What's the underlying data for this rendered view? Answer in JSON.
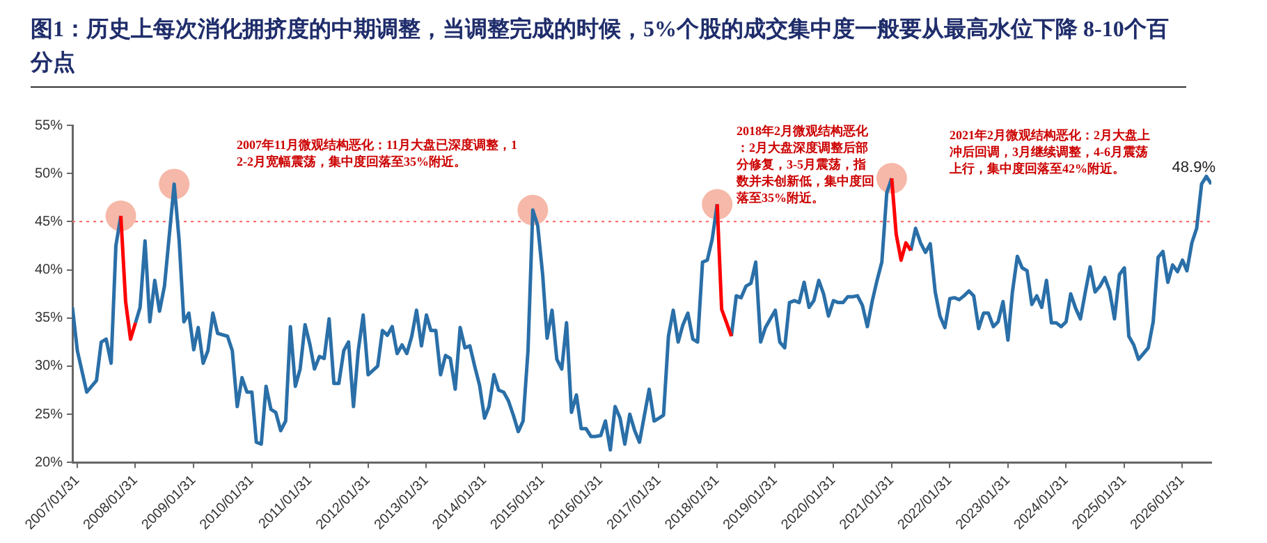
{
  "chart_data": {
    "type": "line",
    "title": "图1：历史上每次消化拥挤度的中期调整，当调整完成的时候，5%个股的成交集中度一般要从最高水位下降 8-10个百分点",
    "xlim": [
      "2007-01",
      "2026-08"
    ],
    "xticks": [
      {
        "value": "2007-01-31",
        "label": "2007/01/31"
      },
      {
        "value": "2008-01-31",
        "label": "2008/01/31"
      },
      {
        "value": "2009-01-31",
        "label": "2009/01/31"
      },
      {
        "value": "2010-01-31",
        "label": "2010/01/31"
      },
      {
        "value": "2011-01-31",
        "label": "2011/01/31"
      },
      {
        "value": "2012-01-31",
        "label": "2012/01/31"
      },
      {
        "value": "2013-01-31",
        "label": "2013/01/31"
      },
      {
        "value": "2014-01-31",
        "label": "2014/01/31"
      },
      {
        "value": "2015-01-31",
        "label": "2015/01/31"
      },
      {
        "value": "2016-01-31",
        "label": "2016/01/31"
      },
      {
        "value": "2017-01-31",
        "label": "2017/01/31"
      },
      {
        "value": "2018-01-31",
        "label": "2018/01/31"
      },
      {
        "value": "2019-01-31",
        "label": "2019/01/31"
      },
      {
        "value": "2020-01-31",
        "label": "2020/01/31"
      },
      {
        "value": "2021-01-31",
        "label": "2021/01/31"
      },
      {
        "value": "2022-01-31",
        "label": "2022/01/31"
      },
      {
        "value": "2023-01-31",
        "label": "2023/01/31"
      },
      {
        "value": "2024-01-31",
        "label": "2024/01/31"
      },
      {
        "value": "2025-01-31",
        "label": "2025/01/31"
      },
      {
        "value": "2026-01-31",
        "label": "2026/01/31"
      }
    ],
    "ylim": [
      20,
      55
    ],
    "yticks": [
      {
        "value": 20,
        "label": "20%"
      },
      {
        "value": 25,
        "label": "25%"
      },
      {
        "value": 30,
        "label": "30%"
      },
      {
        "value": 35,
        "label": "35%"
      },
      {
        "value": 40,
        "label": "40%"
      },
      {
        "value": 45,
        "label": "45%"
      },
      {
        "value": 50,
        "label": "50%"
      },
      {
        "value": 55,
        "label": "55%"
      }
    ],
    "grid": false,
    "legend": false,
    "marker": "none",
    "series": [
      {
        "type": "scatter",
        "marker": "circle",
        "color": "#f6b8a8",
        "x": [
          "2007-11",
          "2008-10",
          "2014-12",
          "2018-02",
          "2021-02"
        ],
        "values": [
          45.6,
          48.9,
          46.2,
          46.8,
          49.5
        ]
      },
      {
        "color": "#2a6fa8",
        "x": [
          "2007-01",
          "2007-02",
          "2007-04",
          "2007-06",
          "2007-07",
          "2007-08",
          "2007-09",
          "2007-10",
          "2007-11",
          "2007-12",
          "2008-01",
          "2008-02",
          "2008-03",
          "2008-04",
          "2008-05",
          "2008-06",
          "2008-07",
          "2008-08",
          "2008-10",
          "2008-11",
          "2008-12",
          "2009-01",
          "2009-02",
          "2009-03",
          "2009-04",
          "2009-05",
          "2009-06",
          "2009-07",
          "2009-09",
          "2009-10",
          "2009-11",
          "2009-12",
          "2010-01",
          "2010-02",
          "2010-03",
          "2010-04",
          "2010-05",
          "2010-06",
          "2010-07",
          "2010-08",
          "2010-09",
          "2010-10",
          "2010-11",
          "2010-12",
          "2011-01",
          "2011-02",
          "2011-03",
          "2011-04",
          "2011-05",
          "2011-06",
          "2011-07",
          "2011-08",
          "2011-09",
          "2011-10",
          "2011-11",
          "2011-12",
          "2012-01",
          "2012-02",
          "2012-04",
          "2012-05",
          "2012-06",
          "2012-07",
          "2012-08",
          "2012-09",
          "2012-10",
          "2012-11",
          "2012-12",
          "2013-01",
          "2013-02",
          "2013-03",
          "2013-04",
          "2013-05",
          "2013-06",
          "2013-07",
          "2013-08",
          "2013-09",
          "2013-10",
          "2013-11",
          "2013-12",
          "2014-01",
          "2014-02",
          "2014-03",
          "2014-04",
          "2014-05",
          "2014-06",
          "2014-07",
          "2014-08",
          "2014-09",
          "2014-10",
          "2014-11",
          "2014-12",
          "2015-01",
          "2015-02",
          "2015-03",
          "2015-04",
          "2015-05",
          "2015-06",
          "2015-07",
          "2015-08",
          "2015-09",
          "2015-10",
          "2015-11",
          "2015-12",
          "2016-01",
          "2016-02",
          "2016-03",
          "2016-04",
          "2016-05",
          "2016-06",
          "2016-07",
          "2016-08",
          "2016-09",
          "2016-10",
          "2016-11",
          "2016-12",
          "2017-01",
          "2017-02",
          "2017-03",
          "2017-04",
          "2017-05",
          "2017-06",
          "2017-07",
          "2017-08",
          "2017-09",
          "2017-10",
          "2017-11",
          "2017-12",
          "2018-01",
          "2018-02",
          "2018-03",
          "2018-04",
          "2018-05",
          "2018-06",
          "2018-07",
          "2018-08",
          "2018-09",
          "2018-10",
          "2018-11",
          "2018-12",
          "2019-01",
          "2019-02",
          "2019-03",
          "2019-04",
          "2019-05",
          "2019-06",
          "2019-07",
          "2019-08",
          "2019-09",
          "2019-10",
          "2019-11",
          "2019-12",
          "2020-01",
          "2020-02",
          "2020-03",
          "2020-04",
          "2020-05",
          "2020-06",
          "2020-07",
          "2020-08",
          "2020-09",
          "2020-10",
          "2020-11",
          "2020-12",
          "2021-01",
          "2021-02",
          "2021-03",
          "2021-04",
          "2021-05",
          "2021-06",
          "2021-07",
          "2021-08",
          "2021-09",
          "2021-10",
          "2021-11",
          "2021-12",
          "2022-01",
          "2022-02",
          "2022-03",
          "2022-04",
          "2022-05",
          "2022-06",
          "2022-07",
          "2022-08",
          "2022-09",
          "2022-10",
          "2022-11",
          "2022-12",
          "2023-01",
          "2023-02",
          "2023-03",
          "2023-04",
          "2023-05",
          "2023-06",
          "2023-07",
          "2023-08",
          "2023-09",
          "2023-10",
          "2023-11",
          "2023-12",
          "2024-01",
          "2024-02",
          "2024-03",
          "2024-04",
          "2024-05",
          "2024-06",
          "2024-07",
          "2024-08",
          "2024-09",
          "2024-10",
          "2024-11",
          "2024-12",
          "2025-01",
          "2025-02",
          "2025-03",
          "2025-04",
          "2025-05",
          "2025-06",
          "2025-07",
          "2025-08",
          "2025-09",
          "2025-10",
          "2025-11",
          "2025-12",
          "2026-01",
          "2026-02",
          "2026-03",
          "2026-04",
          "2026-05",
          "2026-06",
          "2026-07",
          "2026-08"
        ],
        "values": [
          36.1,
          31.6,
          27.3,
          28.5,
          32.5,
          32.8,
          30.3,
          42.5,
          45.6,
          null,
          null,
          34.5,
          36.1,
          43.0,
          34.6,
          38.9,
          35.7,
          38.3,
          48.9,
          43.1,
          34.6,
          35.5,
          31.7,
          34.0,
          30.3,
          31.6,
          35.5,
          33.4,
          33.1,
          31.6,
          25.8,
          28.8,
          27.3,
          27.3,
          22.1,
          21.9,
          27.9,
          25.5,
          25.2,
          23.3,
          24.3,
          34.1,
          27.9,
          29.7,
          34.3,
          32.2,
          29.7,
          31.0,
          30.8,
          34.9,
          28.2,
          28.2,
          31.6,
          32.5,
          25.8,
          31.6,
          35.3,
          29.1,
          30.0,
          33.7,
          33.2,
          34.1,
          31.3,
          32.2,
          31.3,
          33.1,
          35.8,
          32.1,
          35.3,
          33.7,
          33.7,
          29.1,
          31.1,
          30.8,
          27.6,
          34.0,
          31.9,
          32.1,
          30.0,
          28.0,
          24.6,
          25.8,
          29.1,
          27.5,
          27.3,
          26.4,
          24.9,
          23.2,
          24.3,
          31.6,
          46.2,
          44.6,
          39.5,
          32.9,
          35.8,
          30.7,
          29.7,
          34.5,
          25.2,
          27.0,
          23.5,
          23.5,
          22.7,
          22.7,
          22.8,
          24.3,
          21.3,
          25.8,
          24.6,
          21.9,
          25.0,
          23.3,
          22.1,
          24.9,
          27.6,
          24.3,
          24.6,
          24.9,
          33.1,
          35.8,
          32.5,
          34.3,
          35.5,
          32.8,
          32.5,
          40.8,
          41.0,
          43.2,
          46.8,
          null,
          null,
          33.1,
          37.3,
          37.1,
          38.3,
          38.6,
          40.8,
          32.5,
          34.0,
          34.9,
          35.8,
          32.5,
          31.9,
          36.6,
          36.8,
          36.6,
          38.7,
          36.1,
          36.8,
          38.9,
          37.5,
          35.2,
          36.8,
          36.6,
          36.6,
          37.2,
          37.2,
          37.3,
          36.3,
          34.1,
          36.7,
          38.9,
          40.8,
          48.0,
          49.5,
          null,
          null,
          null,
          42.0,
          44.3,
          42.8,
          41.8,
          42.7,
          37.7,
          35.2,
          34.0,
          37.0,
          37.1,
          36.9,
          37.3,
          37.8,
          37.3,
          33.9,
          35.5,
          35.5,
          34.1,
          34.6,
          36.7,
          32.7,
          37.7,
          41.4,
          40.2,
          39.9,
          36.4,
          37.3,
          36.1,
          38.9,
          34.5,
          34.5,
          34.1,
          34.6,
          37.5,
          36.0,
          34.9,
          37.7,
          40.3,
          37.7,
          38.3,
          39.2,
          37.8,
          34.9,
          39.5,
          40.2,
          33.1,
          32.2,
          30.7,
          31.3,
          31.9,
          34.6,
          41.3,
          41.9,
          38.7,
          40.5,
          39.8,
          41.0,
          39.9,
          42.8,
          44.3,
          48.9,
          49.7,
          48.9
        ]
      },
      {
        "color": "#ff0000",
        "x": [
          "2007-11",
          "2007-12",
          "2008-01",
          "2008-02"
        ],
        "values": [
          45.6,
          36.7,
          32.8,
          34.5
        ]
      },
      {
        "color": "#ff0000",
        "x": [
          "2018-02",
          "2018-03",
          "2018-04",
          "2018-05"
        ],
        "values": [
          46.8,
          35.9,
          34.5,
          33.1
        ]
      },
      {
        "color": "#ff0000",
        "x": [
          "2021-02",
          "2021-03",
          "2021-04",
          "2021-05",
          "2021-06"
        ],
        "values": [
          49.5,
          43.7,
          41.0,
          42.8,
          42.0
        ]
      }
    ],
    "ref_lines": [
      {
        "axis": "y",
        "value": 45,
        "color": "#ff6060",
        "line_style": "dotted"
      }
    ],
    "annotations": [
      {
        "text": "48.9%",
        "x": "2026-08",
        "y": 48.9
      },
      "2007年11月微观结构恶化：11月大盘已深度调整，12-2月宽幅震荡，集中度回落至35%附近。",
      "2018年2月微观结构恶化：2月大盘深度调整后部分修复，3-5月震荡，指数并未创新低，集中度回落至35%附近。",
      "2021年2月微观结构恶化：2月大盘上冲后回调，3月继续调整，4-6月震荡上行，集中度回落至42%附近。"
    ]
  }
}
